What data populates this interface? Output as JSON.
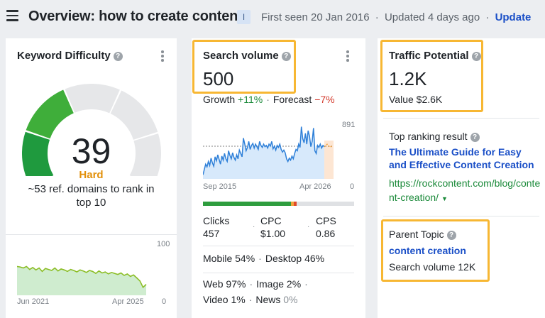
{
  "header": {
    "title": "Overview: how to create content",
    "language_badge": "I",
    "first_seen": "First seen 20 Jan 2016",
    "updated": "Updated 4 days ago",
    "update_label": "Update",
    "separator": "·"
  },
  "keyword_difficulty": {
    "label": "Keyword Difficulty",
    "value": "39",
    "level": "Hard",
    "description": "~53 ref. domains to rank in top 10",
    "gauge_fraction": 0.39,
    "colors": {
      "level": "#e2900a",
      "gauge_active": "#2e9d3e",
      "gauge_inactive": "#e6e7e9"
    },
    "chart": {
      "start": "Jun 2021",
      "end": "Apr 2025",
      "ymax": "100",
      "ymin": "0",
      "values": [
        58,
        57,
        55,
        58,
        52,
        56,
        51,
        55,
        48,
        54,
        52,
        50,
        55,
        49,
        53,
        51,
        48,
        52,
        50,
        47,
        51,
        49,
        46,
        50,
        48,
        44,
        49,
        45,
        47,
        43,
        46,
        44,
        42,
        45,
        40,
        43,
        38,
        41,
        35,
        29,
        16,
        22
      ]
    }
  },
  "search_volume": {
    "label": "Search volume",
    "value": "500",
    "growth_label": "Growth",
    "growth": "+11%",
    "forecast_label": "Forecast",
    "forecast": "−7%",
    "chart": {
      "max_label": "891",
      "min_label": "0",
      "start": "Sep 2015",
      "end": "Apr 2026",
      "ymax": 891,
      "forecast_from": 0.93,
      "values": [
        60,
        140,
        220,
        180,
        260,
        200,
        310,
        240,
        190,
        330,
        270,
        360,
        290,
        220,
        340,
        280,
        380,
        300,
        260,
        420,
        350,
        300,
        390,
        320,
        280,
        360,
        300,
        430,
        380,
        330,
        610,
        520,
        420,
        470,
        560,
        440,
        500,
        530,
        460,
        520,
        480,
        440,
        560,
        500,
        470,
        520,
        480,
        500,
        460,
        520,
        490,
        560,
        450,
        490,
        430,
        500,
        470,
        520,
        440,
        400,
        430,
        390,
        300,
        260,
        310,
        280,
        340,
        300,
        380,
        440,
        420,
        520,
        470,
        780,
        600,
        540,
        680,
        520,
        720,
        640,
        480,
        560,
        760,
        420,
        380,
        500,
        470,
        520,
        460,
        500,
        480
      ]
    },
    "distribution": [
      {
        "fraction": 0.58,
        "color": "#2e9d3e"
      },
      {
        "fraction": 0.02,
        "color": "#f1a33a"
      },
      {
        "fraction": 0.02,
        "color": "#e04a2a"
      },
      {
        "fraction": 0.38,
        "color": "#dfe1e4"
      }
    ],
    "metrics": [
      {
        "label": "Clicks",
        "value": "457"
      },
      {
        "label": "CPC",
        "value": "$1.00"
      },
      {
        "label": "CPS",
        "value": "0.86"
      }
    ],
    "mobile": "Mobile 54%",
    "desktop": "Desktop 46%",
    "web": "Web 97%",
    "image": "Image 2%",
    "video": "Video 1%",
    "news": "News",
    "news_value": "0%"
  },
  "traffic_potential": {
    "label": "Traffic Potential",
    "value": "1.2K",
    "money_value": "Value $2.6K",
    "top_result_label": "Top ranking result",
    "top_result_title": "The Ultimate Guide for Easy and Effective Content Creation",
    "top_result_url": "https://rockcontent.com/blog/content-creation/",
    "parent_topic_label": "Parent Topic",
    "parent_topic": "content creation",
    "parent_volume": "Search volume 12K"
  },
  "icons": {
    "help": "?",
    "caret": "▼"
  }
}
